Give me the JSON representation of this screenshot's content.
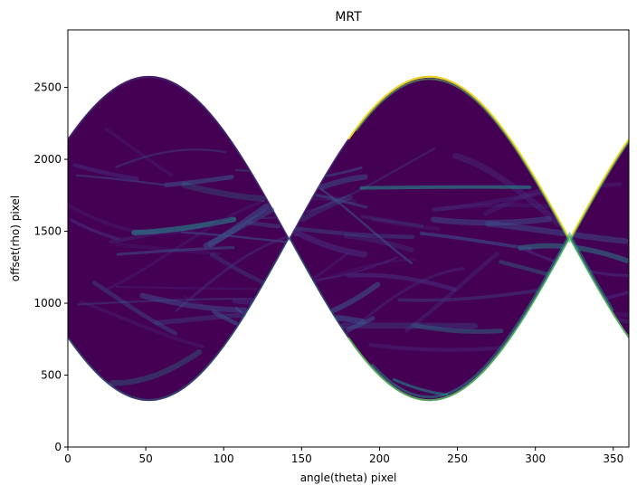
{
  "chart_data": {
    "type": "heatmap",
    "title": "MRT",
    "xlabel": "angle(theta) pixel",
    "ylabel": "offset(rho) pixel",
    "xlim": [
      0,
      360
    ],
    "ylim": [
      0,
      2900
    ],
    "x_ticks": [
      0,
      50,
      100,
      150,
      200,
      250,
      300,
      350
    ],
    "y_ticks": [
      0,
      500,
      1000,
      1500,
      2000,
      2500
    ],
    "x_tick_labels": [
      "0",
      "50",
      "100",
      "150",
      "200",
      "250",
      "300",
      "350"
    ],
    "y_tick_labels": [
      "0",
      "500",
      "1000",
      "1500",
      "2000",
      "2500"
    ],
    "colormap": "viridis",
    "colors": {
      "background": "#440154",
      "low": "#472d7b",
      "mid": "#3b528b",
      "teal": "#21918c",
      "green": "#5ec962",
      "high": "#fde725"
    },
    "envelope": {
      "center": 1450,
      "amplitude": 1130,
      "phase_deg": 52,
      "period_deg": 360
    },
    "grid": false,
    "legend": "none"
  }
}
